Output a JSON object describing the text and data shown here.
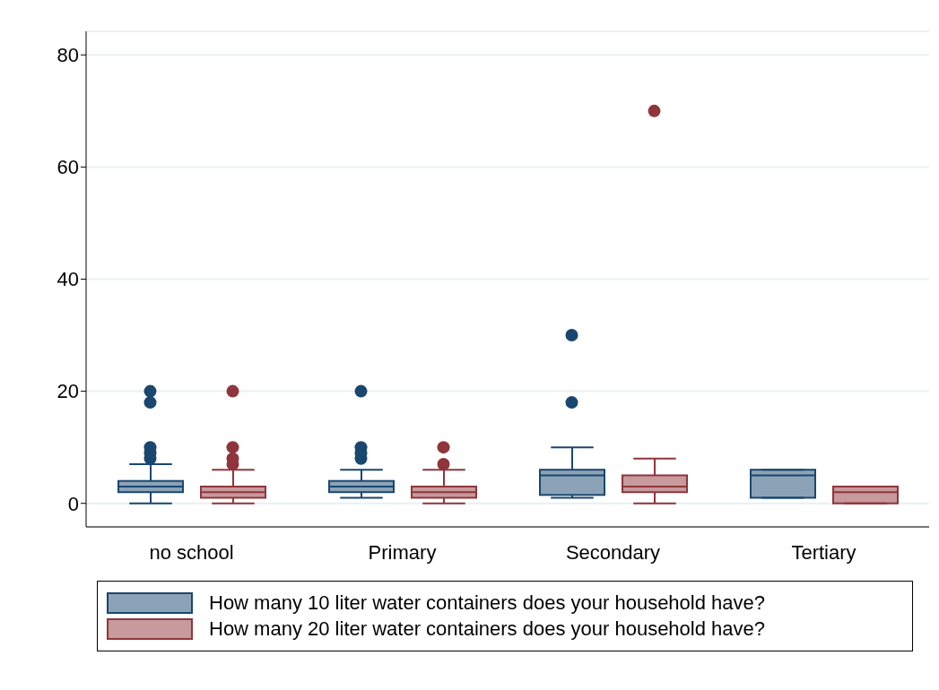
{
  "chart_data": {
    "type": "box",
    "categories": [
      "no school",
      "Primary",
      "Secondary",
      "Tertiary"
    ],
    "ylim": [
      -4.2,
      84.2
    ],
    "yticks": [
      0,
      20,
      40,
      60,
      80
    ],
    "grid": "y",
    "legend": "bottom",
    "series": [
      {
        "name": "How many 10 liter water containers does your household have?",
        "color": "#1a476f",
        "boxes": [
          {
            "low": 0,
            "q1": 2,
            "median": 3,
            "q3": 4,
            "high": 7,
            "outliers": [
              8,
              9,
              10,
              18,
              20
            ]
          },
          {
            "low": 1,
            "q1": 2,
            "median": 3,
            "q3": 4,
            "high": 6,
            "outliers": [
              8,
              9,
              10,
              20
            ]
          },
          {
            "low": 1,
            "q1": 1.5,
            "median": 5,
            "q3": 6,
            "high": 10,
            "outliers": [
              18,
              30
            ]
          },
          {
            "low": 1,
            "q1": 1,
            "median": 5,
            "q3": 6,
            "high": 6
          }
        ]
      },
      {
        "name": "How many 20 liter water containers does your household have?",
        "color": "#90353b",
        "boxes": [
          {
            "low": 0,
            "q1": 1,
            "median": 2,
            "q3": 3,
            "high": 6,
            "outliers": [
              7,
              8,
              10,
              20
            ]
          },
          {
            "low": 0,
            "q1": 1,
            "median": 2,
            "q3": 3,
            "high": 6,
            "outliers": [
              7,
              10
            ]
          },
          {
            "low": 0,
            "q1": 2,
            "median": 3,
            "q3": 5,
            "high": 8,
            "outliers": [
              70
            ]
          },
          {
            "low": 0,
            "q1": 0,
            "median": 2,
            "q3": 3,
            "high": 3
          }
        ]
      }
    ]
  }
}
